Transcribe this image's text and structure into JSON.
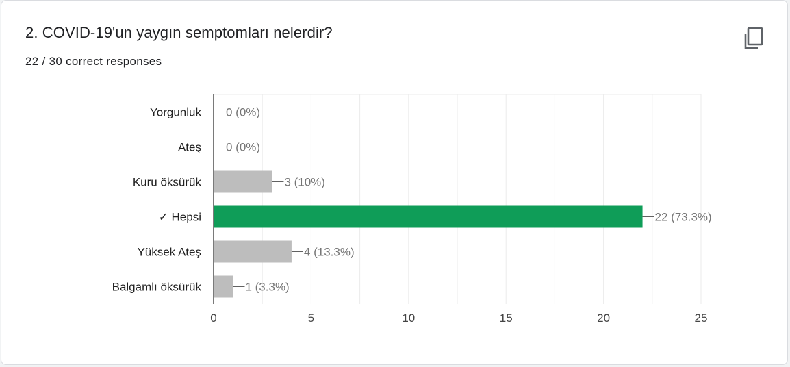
{
  "question": {
    "title": "2. COVID-19'un yaygın semptomları nelerdir?",
    "responses": "22 / 30 correct responses"
  },
  "icons": {
    "copy": "copy-icon"
  },
  "colors": {
    "correct": "#0f9d58",
    "other": "#bdbdbd",
    "axis": "#333333",
    "grid": "#ebebeb"
  },
  "chart_data": {
    "type": "bar",
    "orientation": "horizontal",
    "categories": [
      "Yorgunluk",
      "Ateş",
      "Kuru öksürük",
      "✓ Hepsi",
      "Yüksek Ateş",
      "Balgamlı öksürük"
    ],
    "values": [
      0,
      0,
      3,
      22,
      4,
      1
    ],
    "data_labels": [
      "0 (0%)",
      "0 (0%)",
      "3 (10%)",
      "22 (73.3%)",
      "4 (13.3%)",
      "1 (3.3%)"
    ],
    "correct": [
      false,
      false,
      false,
      true,
      false,
      false
    ],
    "xlim": [
      0,
      25
    ],
    "xticks": [
      0,
      5,
      10,
      15,
      20,
      25
    ],
    "grid": true,
    "legend": "none"
  }
}
